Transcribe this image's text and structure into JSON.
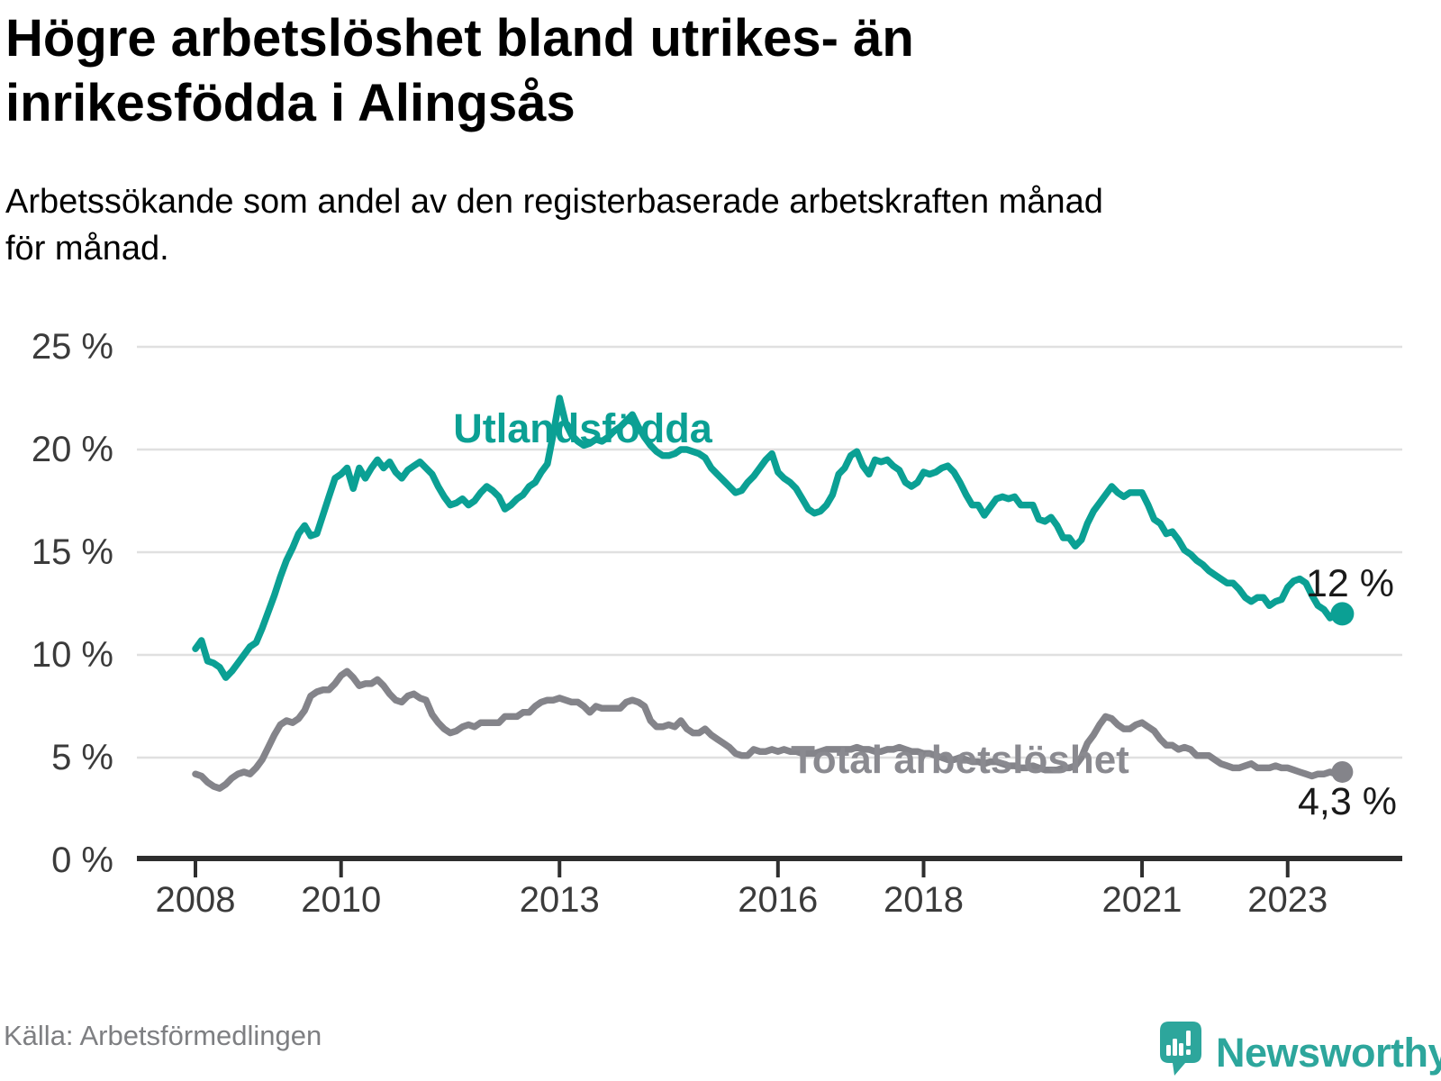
{
  "header": {
    "title_line1": "Högre arbetslöshet bland utrikes- än",
    "title_line2": "inrikesfödda i Alingsås",
    "subtitle_line1": "Arbetssökande som andel av den registerbaserade arbetskraften månad",
    "subtitle_line2": "för månad."
  },
  "footer": {
    "source": "Källa: Arbetsförmedlingen",
    "brand_name": "Newsworthy"
  },
  "colors": {
    "teal": "#0ba094",
    "gray": "#84848a",
    "gray_label": "#8a8a90",
    "text_dark": "#1a1a1a",
    "axis_text": "#3b3b3b",
    "gridline": "#e0e0e0",
    "axis_line": "#2e2e2e",
    "source_text": "#7e7f82",
    "logo_teal": "#2da69c"
  },
  "chart_data": {
    "type": "line",
    "title": "Högre arbetslöshet bland utrikes- än inrikesfödda i Alingsås",
    "subtitle": "Arbetssökande som andel av den registerbaserade arbetskraften månad för månad.",
    "xlabel": "",
    "ylabel": "",
    "ylim": [
      0,
      25
    ],
    "grid": "horizontal",
    "x_unit": "month",
    "x_start": "2008-01",
    "x_end": "2023-10",
    "y_ticks": {
      "values": [
        25,
        20,
        15,
        10,
        5,
        0
      ],
      "labels": [
        "25 %",
        "20 %",
        "15 %",
        "10 %",
        "5 %",
        "0 %"
      ]
    },
    "x_ticks": {
      "years": [
        2008,
        2010,
        2013,
        2016,
        2018,
        2021,
        2023
      ],
      "labels": [
        "2008",
        "2010",
        "2013",
        "2016",
        "2018",
        "2021",
        "2023"
      ]
    },
    "series": [
      {
        "name": "Utlandsfödda",
        "color": "#0ba094",
        "end_label": "12 %",
        "values": [
          10.3,
          10.7,
          9.7,
          9.6,
          9.4,
          8.9,
          9.2,
          9.6,
          10.0,
          10.4,
          10.6,
          11.3,
          12.1,
          12.9,
          13.8,
          14.6,
          15.2,
          15.9,
          16.3,
          15.8,
          15.9,
          16.8,
          17.7,
          18.6,
          18.8,
          19.1,
          18.1,
          19.1,
          18.6,
          19.1,
          19.5,
          19.1,
          19.4,
          18.9,
          18.6,
          19.0,
          19.2,
          19.4,
          19.1,
          18.8,
          18.2,
          17.7,
          17.3,
          17.4,
          17.6,
          17.3,
          17.5,
          17.9,
          18.2,
          18.0,
          17.7,
          17.1,
          17.3,
          17.6,
          17.8,
          18.2,
          18.4,
          18.9,
          19.3,
          20.8,
          22.5,
          21.3,
          20.7,
          20.4,
          20.2,
          20.3,
          20.5,
          20.4,
          20.6,
          20.9,
          21.1,
          21.4,
          21.7,
          21.1,
          20.6,
          20.2,
          19.9,
          19.7,
          19.7,
          19.8,
          20.0,
          20.0,
          19.9,
          19.8,
          19.6,
          19.1,
          18.8,
          18.5,
          18.2,
          17.9,
          18.0,
          18.4,
          18.7,
          19.1,
          19.5,
          19.8,
          18.9,
          18.6,
          18.4,
          18.1,
          17.6,
          17.1,
          16.9,
          17.0,
          17.3,
          17.8,
          18.8,
          19.1,
          19.7,
          19.9,
          19.2,
          18.8,
          19.5,
          19.4,
          19.5,
          19.2,
          19.0,
          18.4,
          18.2,
          18.4,
          18.9,
          18.8,
          18.9,
          19.1,
          19.2,
          18.9,
          18.4,
          17.8,
          17.3,
          17.3,
          16.8,
          17.2,
          17.6,
          17.7,
          17.6,
          17.7,
          17.3,
          17.3,
          17.3,
          16.6,
          16.5,
          16.7,
          16.3,
          15.7,
          15.7,
          15.3,
          15.6,
          16.4,
          17.0,
          17.4,
          17.8,
          18.2,
          17.9,
          17.7,
          17.9,
          17.9,
          17.9,
          17.3,
          16.6,
          16.4,
          15.9,
          16.0,
          15.6,
          15.1,
          14.9,
          14.6,
          14.4,
          14.1,
          13.9,
          13.7,
          13.5,
          13.5,
          13.2,
          12.8,
          12.6,
          12.8,
          12.8,
          12.4,
          12.6,
          12.7,
          13.3,
          13.6,
          13.7,
          13.5,
          12.9,
          12.4,
          12.2,
          11.8,
          12.1,
          12.0
        ]
      },
      {
        "name": "Total arbetslöshet",
        "color": "#84848a",
        "end_label": "4,3 %",
        "values": [
          4.2,
          4.1,
          3.8,
          3.6,
          3.5,
          3.7,
          4.0,
          4.2,
          4.3,
          4.2,
          4.5,
          4.9,
          5.5,
          6.1,
          6.6,
          6.8,
          6.7,
          6.9,
          7.3,
          8.0,
          8.2,
          8.3,
          8.3,
          8.6,
          9.0,
          9.2,
          8.9,
          8.5,
          8.6,
          8.6,
          8.8,
          8.5,
          8.1,
          7.8,
          7.7,
          8.0,
          8.1,
          7.9,
          7.8,
          7.1,
          6.7,
          6.4,
          6.2,
          6.3,
          6.5,
          6.6,
          6.5,
          6.7,
          6.7,
          6.7,
          6.7,
          7.0,
          7.0,
          7.0,
          7.2,
          7.2,
          7.5,
          7.7,
          7.8,
          7.8,
          7.9,
          7.8,
          7.7,
          7.7,
          7.5,
          7.2,
          7.5,
          7.4,
          7.4,
          7.4,
          7.4,
          7.7,
          7.8,
          7.7,
          7.5,
          6.8,
          6.5,
          6.5,
          6.6,
          6.5,
          6.8,
          6.4,
          6.2,
          6.2,
          6.4,
          6.1,
          5.9,
          5.7,
          5.5,
          5.2,
          5.1,
          5.1,
          5.4,
          5.3,
          5.3,
          5.4,
          5.3,
          5.4,
          5.3,
          5.3,
          5.2,
          5.2,
          5.2,
          5.3,
          5.4,
          5.4,
          5.4,
          5.4,
          5.4,
          5.5,
          5.4,
          5.4,
          5.3,
          5.3,
          5.4,
          5.4,
          5.5,
          5.4,
          5.3,
          5.3,
          5.2,
          5.2,
          5.1,
          5.0,
          4.9,
          4.9,
          5.0,
          4.9,
          4.8,
          4.8,
          4.7,
          4.8,
          4.8,
          4.7,
          4.6,
          4.6,
          4.5,
          4.5,
          4.6,
          4.5,
          4.4,
          4.4,
          4.4,
          4.5,
          4.5,
          4.6,
          5.0,
          5.7,
          6.1,
          6.6,
          7.0,
          6.9,
          6.6,
          6.4,
          6.4,
          6.6,
          6.7,
          6.5,
          6.3,
          5.9,
          5.6,
          5.6,
          5.4,
          5.5,
          5.4,
          5.1,
          5.1,
          5.1,
          4.9,
          4.7,
          4.6,
          4.5,
          4.5,
          4.6,
          4.7,
          4.5,
          4.5,
          4.5,
          4.6,
          4.5,
          4.5,
          4.4,
          4.3,
          4.2,
          4.1,
          4.2,
          4.2,
          4.3,
          4.2,
          4.3
        ]
      }
    ],
    "legend_position": "inline-labels",
    "annotations": {
      "utlandsfodda_label_pos": "above line, year 2013",
      "total_label_pos": "on line, year 2016-2019"
    }
  }
}
